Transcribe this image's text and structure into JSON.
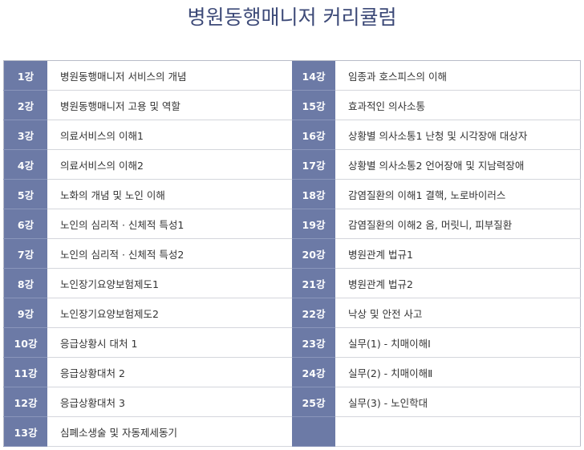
{
  "title": "병원동행매니저 커리큘럼",
  "lessons": [
    {
      "no": "1강",
      "name": "병원동행매니저 서비스의 개념"
    },
    {
      "no": "2강",
      "name": "병원동행매니저 고용 및 역할"
    },
    {
      "no": "3강",
      "name": "의료서비스의 이해1"
    },
    {
      "no": "4강",
      "name": "의료서비스의 이해2"
    },
    {
      "no": "5강",
      "name": "노화의 개념 및 노인 이해"
    },
    {
      "no": "6강",
      "name": "노인의 심리적 · 신체적 특성1"
    },
    {
      "no": "7강",
      "name": "노인의 심리적 · 신체적 특성2"
    },
    {
      "no": "8강",
      "name": "노인장기요양보험제도1"
    },
    {
      "no": "9강",
      "name": "노인장기요양보험제도2"
    },
    {
      "no": "10강",
      "name": "응급상황시 대처 1"
    },
    {
      "no": "11강",
      "name": "응급상황대처 2"
    },
    {
      "no": "12강",
      "name": "응급상황대처 3"
    },
    {
      "no": "13강",
      "name": "심폐소생술 및 자동제세동기"
    },
    {
      "no": "14강",
      "name": "임종과 호스피스의 이해"
    },
    {
      "no": "15강",
      "name": "효과적인 의사소통"
    },
    {
      "no": "16강",
      "name": "상황별 의사소통1 난청 및 시각장애 대상자"
    },
    {
      "no": "17강",
      "name": "상황별 의사소통2 언어장애 및 지남력장애"
    },
    {
      "no": "18강",
      "name": "감염질환의 이해1 결핵, 노로바이러스"
    },
    {
      "no": "19강",
      "name": "감염질환의 이해2 옴, 머릿니, 피부질환"
    },
    {
      "no": "20강",
      "name": "병원관계 법규1"
    },
    {
      "no": "21강",
      "name": "병원관계 법규2"
    },
    {
      "no": "22강",
      "name": "낙상 및 안전 사고"
    },
    {
      "no": "23강",
      "name": "실무(1) - 치매이해Ⅰ"
    },
    {
      "no": "24강",
      "name": "실무(2) - 치매이해Ⅱ"
    },
    {
      "no": "25강",
      "name": "실무(3) - 노인학대"
    }
  ]
}
